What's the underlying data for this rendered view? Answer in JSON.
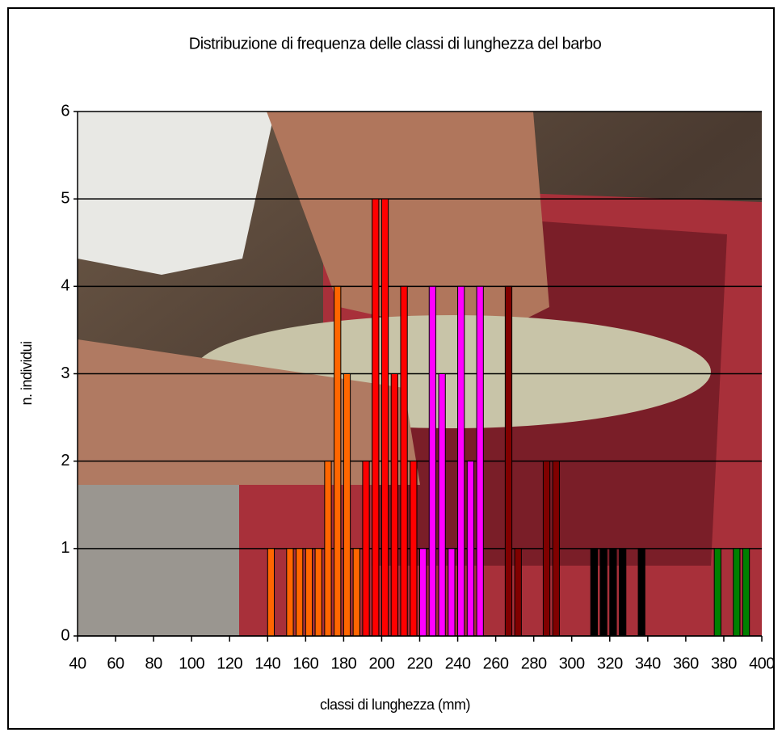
{
  "chart_data": {
    "type": "bar",
    "title": "Distribuzione di frequenza delle classi di lunghezza del barbo",
    "x_label": "classi di lunghezza (mm)",
    "y_label": "n. individui",
    "x": [
      140,
      150,
      155,
      160,
      165,
      170,
      175,
      180,
      185,
      190,
      195,
      200,
      205,
      210,
      215,
      220,
      225,
      230,
      235,
      240,
      245,
      250,
      265,
      270,
      285,
      290,
      310,
      315,
      320,
      325,
      335,
      375,
      385,
      390
    ],
    "values": [
      1,
      1,
      1,
      1,
      1,
      2,
      4,
      3,
      1,
      2,
      5,
      5,
      3,
      4,
      2,
      1,
      4,
      3,
      1,
      4,
      2,
      4,
      4,
      1,
      2,
      2,
      1,
      1,
      1,
      1,
      1,
      1,
      1,
      1
    ],
    "colors": [
      "#ff6600",
      "#ff6600",
      "#ff6600",
      "#ff6600",
      "#ff6600",
      "#ff6600",
      "#ff6600",
      "#ff6600",
      "#ff6600",
      "#ff0000",
      "#ff0000",
      "#ff0000",
      "#ff0000",
      "#ff0000",
      "#ff0000",
      "#ff00ff",
      "#ff00ff",
      "#ff00ff",
      "#ff00ff",
      "#ff00ff",
      "#ff00ff",
      "#ff00ff",
      "#800000",
      "#800000",
      "#800000",
      "#800000",
      "#000000",
      "#000000",
      "#000000",
      "#000000",
      "#000000",
      "#008000",
      "#008000",
      "#008000"
    ],
    "xlim": [
      40,
      400
    ],
    "xticks": [
      40,
      60,
      80,
      100,
      120,
      140,
      160,
      180,
      200,
      220,
      240,
      260,
      280,
      300,
      320,
      340,
      360,
      380,
      400
    ],
    "ylim": [
      0,
      6
    ],
    "yticks": [
      0,
      1,
      2,
      3,
      4,
      5,
      6
    ],
    "grid": true
  }
}
